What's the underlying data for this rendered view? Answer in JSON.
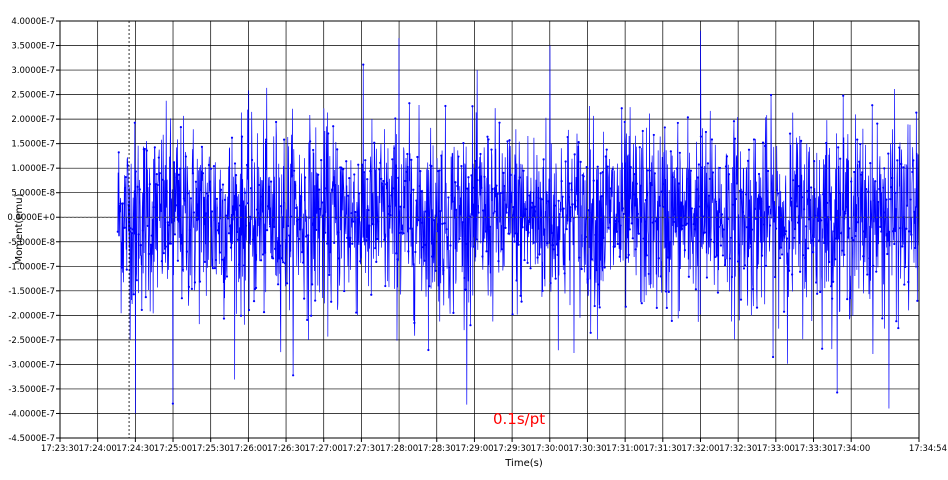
{
  "chart_data": {
    "type": "line",
    "title": "",
    "xlabel": "Time(s)",
    "ylabel": "Moment(emu)",
    "xlim": [
      "17:23:30",
      "17:34:54"
    ],
    "ylim": [
      -4.5e-07,
      4e-07
    ],
    "x_start": "17:24:16",
    "x_end": "17:34:54",
    "sample_interval": "0.1s",
    "grid": true,
    "legend": "none",
    "marker_cursor": "17:24:25",
    "x_ticks": [
      "17:23:30",
      "17:24:00",
      "17:24:30",
      "17:25:00",
      "17:25:30",
      "17:26:00",
      "17:26:30",
      "17:27:00",
      "17:27:30",
      "17:28:00",
      "17:28:30",
      "17:29:00",
      "17:29:30",
      "17:30:00",
      "17:30:30",
      "17:31:00",
      "17:31:30",
      "17:32:00",
      "17:32:30",
      "17:33:00",
      "17:33:30",
      "17:34:00",
      "17:34:54"
    ],
    "y_ticks": [
      "4.0000E-7",
      "3.5000E-7",
      "3.0000E-7",
      "2.5000E-7",
      "2.0000E-7",
      "1.5000E-7",
      "1.0000E-7",
      "5.0000E-8",
      "0.0000E+0",
      "-5.0000E-8",
      "-1.0000E-7",
      "-1.5000E-7",
      "-2.0000E-7",
      "-2.5000E-7",
      "-3.0000E-7",
      "-3.5000E-7",
      "-4.0000E-7",
      "-4.5000E-7"
    ],
    "y_tick_values": [
      4e-07,
      3.5e-07,
      3e-07,
      2.5e-07,
      2e-07,
      1.5e-07,
      1e-07,
      5e-08,
      0,
      -5e-08,
      -1e-07,
      -1.5e-07,
      -2e-07,
      -2.5e-07,
      -3e-07,
      -3.5e-07,
      -4e-07,
      -4.5e-07
    ],
    "noise_std": 9.5e-08,
    "series": [
      {
        "color": "#0000ff",
        "notable_points": [
          {
            "x": "17:24:30",
            "y": -4e-07
          },
          {
            "x": "17:25:00",
            "y": -3.8e-07
          },
          {
            "x": "17:28:00",
            "y": 3.65e-07
          },
          {
            "x": "17:30:00",
            "y": 3.5e-07
          },
          {
            "x": "17:32:00",
            "y": 3.8e-07
          },
          {
            "x": "17:34:30",
            "y": -3.9e-07
          }
        ]
      }
    ],
    "annotations": [
      {
        "text": "0.1s/pt",
        "color": "#ff0000"
      }
    ]
  }
}
